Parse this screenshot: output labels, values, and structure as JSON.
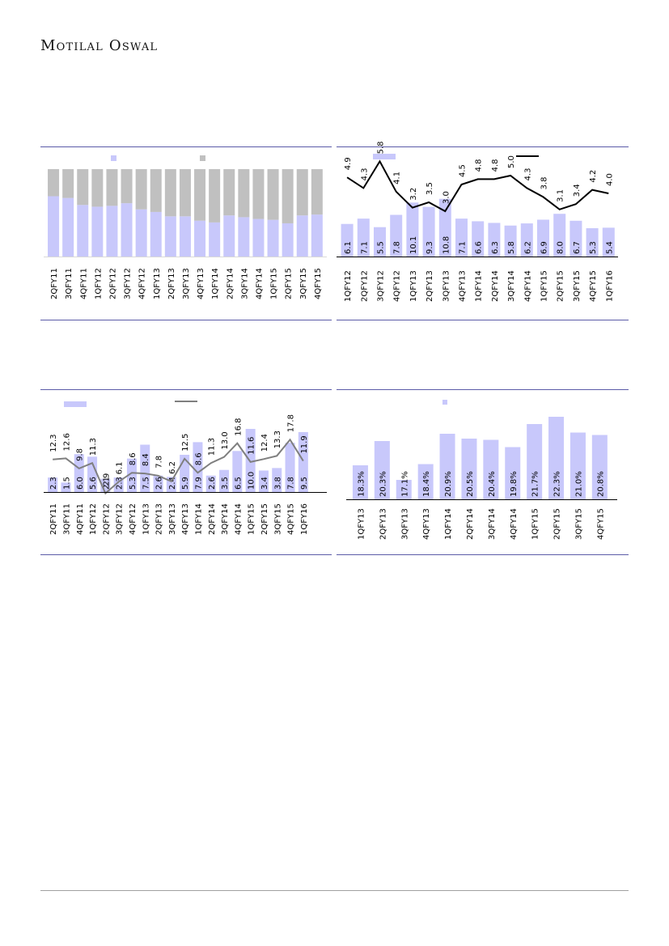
{
  "header": {
    "brand": "Motilal Oswal"
  },
  "colors": {
    "bar": "#c8c8fb",
    "grey_bar": "#c0c0c0",
    "line_black": "#000000",
    "line_grey": "#7f7f7f",
    "rule": "#5b5ba8"
  },
  "chart_data": [
    {
      "type": "bar",
      "stacked": true,
      "percent_stacked": true,
      "categories": [
        "2QFY11",
        "3QFY11",
        "4QFY11",
        "1QFY12",
        "2QFY12",
        "3QFY12",
        "4QFY12",
        "1QFY13",
        "2QFY13",
        "3QFY13",
        "4QFY13",
        "1QFY14",
        "2QFY14",
        "3QFY14",
        "4QFY14",
        "1QFY15",
        "2QFY15",
        "3QFY15",
        "4QFY15"
      ],
      "series": [
        {
          "color": "#c8c8fb",
          "values": [
            69,
            67,
            59,
            57,
            58,
            61,
            54,
            51,
            46,
            46,
            41,
            39,
            47,
            45,
            43,
            42,
            38,
            47,
            48
          ]
        },
        {
          "color": "#c0c0c0",
          "values": [
            31,
            33,
            41,
            43,
            42,
            39,
            46,
            49,
            54,
            54,
            59,
            61,
            53,
            55,
            57,
            58,
            62,
            53,
            52
          ]
        }
      ],
      "ylim": [
        0,
        100
      ],
      "legend": "top"
    },
    {
      "type": "bar+line",
      "categories": [
        "1QFY12",
        "2QFY12",
        "3QFY12",
        "4QFY12",
        "1QFY13",
        "2QFY13",
        "3QFY13",
        "4QFY13",
        "1QFY14",
        "2QFY14",
        "3QFY14",
        "4QFY14",
        "1QFY15",
        "2QFY15",
        "3QFY15",
        "4QFY15",
        "1QFY16"
      ],
      "bars": {
        "color": "#c8c8fb",
        "values": [
          6.1,
          7.1,
          5.5,
          7.8,
          10.1,
          9.3,
          10.8,
          7.1,
          6.6,
          6.3,
          5.8,
          6.2,
          6.9,
          8.0,
          6.7,
          5.3,
          5.4
        ],
        "labels": [
          "6.1",
          "7.1",
          "5.5",
          "7.8",
          "10.1",
          "9.3",
          "10.8",
          "7.1",
          "6.6",
          "6.3",
          "5.8",
          "6.2",
          "6.9",
          "8.0",
          "6.7",
          "5.3",
          "5.4"
        ]
      },
      "line": {
        "color": "#000000",
        "values": [
          4.9,
          4.3,
          5.8,
          4.1,
          3.2,
          3.5,
          3.0,
          4.5,
          4.8,
          4.8,
          5.0,
          4.3,
          3.8,
          3.1,
          3.4,
          4.2,
          4.0
        ],
        "labels": [
          "4.9",
          "4.3",
          "5.8",
          "4.1",
          "3.2",
          "3.5",
          "3.0",
          "4.5",
          "4.8",
          "4.8",
          "5.0",
          "4.3",
          "3.8",
          "3.1",
          "3.4",
          "4.2",
          "4.0"
        ]
      },
      "legend": "top"
    },
    {
      "type": "bar+line",
      "categories": [
        "2QFY11",
        "3QFY11",
        "4QFY11",
        "1QFY12",
        "2QFY12",
        "3QFY12",
        "4QFY12",
        "1QFY13",
        "2QFY13",
        "3QFY13",
        "4QFY13",
        "1QFY14",
        "2QFY14",
        "3QFY14",
        "4QFY14",
        "1QFY15",
        "2QFY15",
        "3QFY15",
        "4QFY15",
        "1QFY16"
      ],
      "bars": {
        "color": "#c8c8fb",
        "values": [
          2.3,
          1.5,
          6.0,
          5.6,
          2.1,
          2.3,
          5.3,
          7.5,
          2.6,
          2.4,
          5.9,
          7.9,
          2.6,
          3.5,
          6.5,
          10.0,
          3.4,
          3.8,
          7.8,
          9.5
        ],
        "labels": [
          "2.3",
          "1.5",
          "6.0",
          "5.6",
          "2.1",
          "2.3",
          "5.3",
          "7.5",
          "2.6",
          "2.4",
          "5.9",
          "7.9",
          "2.6",
          "3.5",
          "6.5",
          "10.0",
          "3.4",
          "3.8",
          "7.8",
          "9.5"
        ]
      },
      "line": {
        "color": "#7f7f7f",
        "values": [
          12.3,
          12.6,
          9.8,
          11.3,
          2.9,
          6.1,
          8.6,
          8.4,
          7.8,
          6.2,
          12.5,
          8.6,
          11.3,
          13.0,
          16.8,
          11.6,
          12.4,
          13.3,
          17.8,
          11.9
        ],
        "labels": [
          "12.3",
          "12.6",
          "9.8",
          "11.3",
          "2.9",
          "6.1",
          "8.6",
          "8.4",
          "7.8",
          "6.2",
          "12.5",
          "8.6",
          "11.3",
          "13.0",
          "16.8",
          "11.6",
          "12.4",
          "13.3",
          "17.8",
          "11.9"
        ]
      },
      "legend": "top"
    },
    {
      "type": "bar",
      "categories": [
        "1QFY13",
        "2QFY13",
        "3QFY13",
        "4QFY13",
        "1QFY14",
        "2QFY14",
        "3QFY14",
        "4QFY14",
        "1QFY15",
        "2QFY15",
        "3QFY15",
        "4QFY15"
      ],
      "series": [
        {
          "color": "#c8c8fb",
          "values": [
            18.3,
            20.3,
            17.1,
            18.4,
            20.9,
            20.5,
            20.4,
            19.8,
            21.7,
            22.3,
            21.0,
            20.8
          ],
          "labels": [
            "18.3%",
            "20.3%",
            "17.1%",
            "18.4%",
            "20.9%",
            "20.5%",
            "20.4%",
            "19.8%",
            "21.7%",
            "22.3%",
            "21.0%",
            "20.8%"
          ]
        }
      ],
      "legend": "top"
    }
  ]
}
